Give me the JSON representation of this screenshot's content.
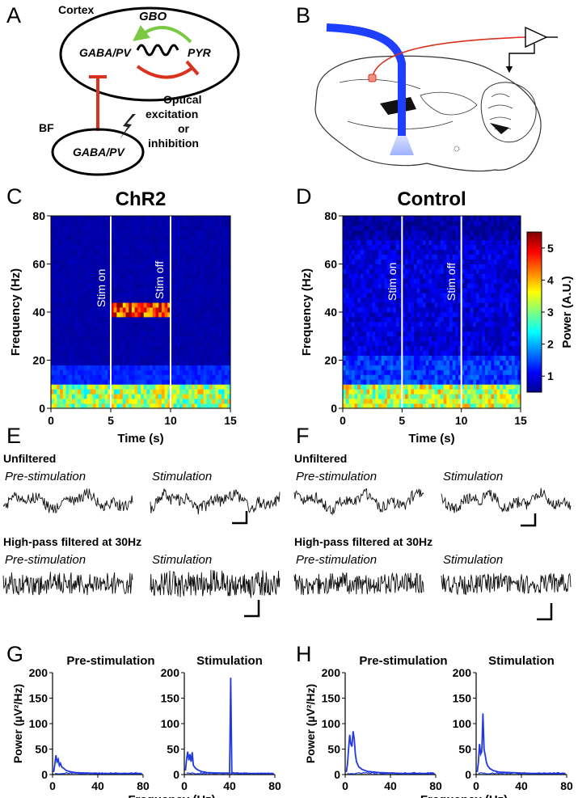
{
  "panel_letters": [
    "A",
    "B",
    "C",
    "D",
    "E",
    "F",
    "G",
    "H"
  ],
  "panelA": {
    "cortex_label": "Cortex",
    "gbo_label": "GBO",
    "gaba_pv_cortex": "GABA/PV",
    "pyr_label": "PYR",
    "bf_label": "BF",
    "gaba_pv_bf": "GABA/PV",
    "optical_lines": [
      "Optical",
      "excitation",
      "or",
      "inhibition"
    ],
    "colors": {
      "excitatory": "#7ac943",
      "inhibitory": "#d9321f"
    }
  },
  "panelB": {
    "colors": {
      "optic_fiber": "#1f3fff",
      "electrode_wire": "#d9321f",
      "light_cone": "#9fb3ff"
    }
  },
  "spectrogram_colorbar": {
    "label": "Power (A.U.)",
    "ticks": [
      "1",
      "2",
      "3",
      "4",
      "5"
    ],
    "range": [
      0.5,
      5.5
    ],
    "colormap": "jet"
  },
  "chart_data": [
    {
      "id": "C",
      "type": "heatmap",
      "title": "ChR2",
      "xlabel": "Time (s)",
      "ylabel": "Frequency (Hz)",
      "xlim": [
        0,
        15
      ],
      "ylim": [
        0,
        80
      ],
      "xticks": [
        "0",
        "5",
        "10",
        "15"
      ],
      "yticks": [
        "0",
        "20",
        "40",
        "60",
        "80"
      ],
      "annotations": [
        "Stim on",
        "Stim off"
      ],
      "stim_on": 5,
      "stim_off": 10,
      "bands": [
        {
          "f_low": 0,
          "f_high": 11,
          "t_start": 0,
          "t_end": 15,
          "level": 3.2
        },
        {
          "f_low": 11,
          "f_high": 18,
          "t_start": 0,
          "t_end": 15,
          "level": 1.3
        },
        {
          "f_low": 38,
          "f_high": 44,
          "t_start": 5,
          "t_end": 10,
          "level": 4.6
        }
      ]
    },
    {
      "id": "D",
      "type": "heatmap",
      "title": "Control",
      "xlabel": "Time (s)",
      "ylabel": "Frequency (Hz)",
      "xlim": [
        0,
        15
      ],
      "ylim": [
        0,
        80
      ],
      "xticks": [
        "0",
        "5",
        "10",
        "15"
      ],
      "yticks": [
        "0",
        "20",
        "40",
        "60",
        "80"
      ],
      "annotations": [
        "Stim on",
        "Stim off"
      ],
      "stim_on": 5,
      "stim_off": 10,
      "bands": [
        {
          "f_low": 0,
          "f_high": 11,
          "t_start": 0,
          "t_end": 15,
          "level": 3.3
        },
        {
          "f_low": 11,
          "f_high": 22,
          "t_start": 0,
          "t_end": 15,
          "level": 1.4
        },
        {
          "f_low": 22,
          "f_high": 70,
          "t_start": 0,
          "t_end": 15,
          "level": 0.95
        }
      ]
    },
    {
      "id": "G",
      "type": "line",
      "titles": [
        "Pre-stimulation",
        "Stimulation"
      ],
      "xlabel": "Frequency (Hz)",
      "ylabel": "Power (µV²/Hz)",
      "xlim": [
        0,
        80
      ],
      "ylim": [
        0,
        200
      ],
      "xticks": [
        "0",
        "40",
        "80"
      ],
      "yticks": [
        "0",
        "50",
        "100",
        "150",
        "200"
      ],
      "series": [
        {
          "x": [
            1,
            2,
            3,
            4,
            5,
            6,
            7,
            8,
            10,
            12,
            15,
            20,
            30,
            40,
            41,
            42,
            43,
            50,
            60,
            79
          ],
          "values": [
            5,
            20,
            38,
            25,
            30,
            18,
            22,
            15,
            12,
            8,
            6,
            4,
            3,
            2,
            2,
            2,
            2,
            2,
            2,
            2
          ]
        },
        {
          "x": [
            1,
            2,
            3,
            4,
            5,
            6,
            7,
            8,
            10,
            12,
            15,
            20,
            30,
            40,
            41,
            42,
            43,
            50,
            60,
            79
          ],
          "values": [
            8,
            30,
            45,
            28,
            40,
            25,
            44,
            18,
            12,
            9,
            6,
            4,
            3,
            3,
            190,
            3,
            3,
            2,
            2,
            2
          ]
        }
      ],
      "color": "#2039e0"
    },
    {
      "id": "H",
      "type": "line",
      "titles": [
        "Pre-stimulation",
        "Stimulation"
      ],
      "xlabel": "Frequency (Hz)",
      "ylabel": "Power (µV²/Hz)",
      "xlim": [
        0,
        80
      ],
      "ylim": [
        0,
        200
      ],
      "xticks": [
        "0",
        "40",
        "80"
      ],
      "yticks": [
        "0",
        "50",
        "100",
        "150",
        "200"
      ],
      "series": [
        {
          "x": [
            1,
            2,
            3,
            4,
            5,
            6,
            7,
            8,
            9,
            10,
            12,
            15,
            20,
            30,
            40,
            50,
            60,
            79
          ],
          "values": [
            5,
            20,
            50,
            78,
            60,
            55,
            85,
            70,
            40,
            25,
            15,
            10,
            6,
            4,
            3,
            2,
            2,
            2
          ]
        },
        {
          "x": [
            1,
            2,
            3,
            4,
            5,
            6,
            7,
            8,
            9,
            10,
            12,
            15,
            20,
            30,
            40,
            50,
            60,
            79
          ],
          "values": [
            5,
            25,
            60,
            40,
            45,
            120,
            50,
            38,
            25,
            18,
            12,
            8,
            5,
            4,
            3,
            2,
            2,
            2
          ]
        }
      ],
      "color": "#2039e0"
    }
  ],
  "traces": {
    "E": {
      "unfiltered_heading": "Unfiltered",
      "filtered_heading": "High-pass filtered at 30Hz",
      "pre_label": "Pre-stimulation",
      "stim_label": "Stimulation"
    },
    "F": {
      "unfiltered_heading": "Unfiltered",
      "filtered_heading": "High-pass filtered at 30Hz",
      "pre_label": "Pre-stimulation",
      "stim_label": "Stimulation"
    }
  }
}
